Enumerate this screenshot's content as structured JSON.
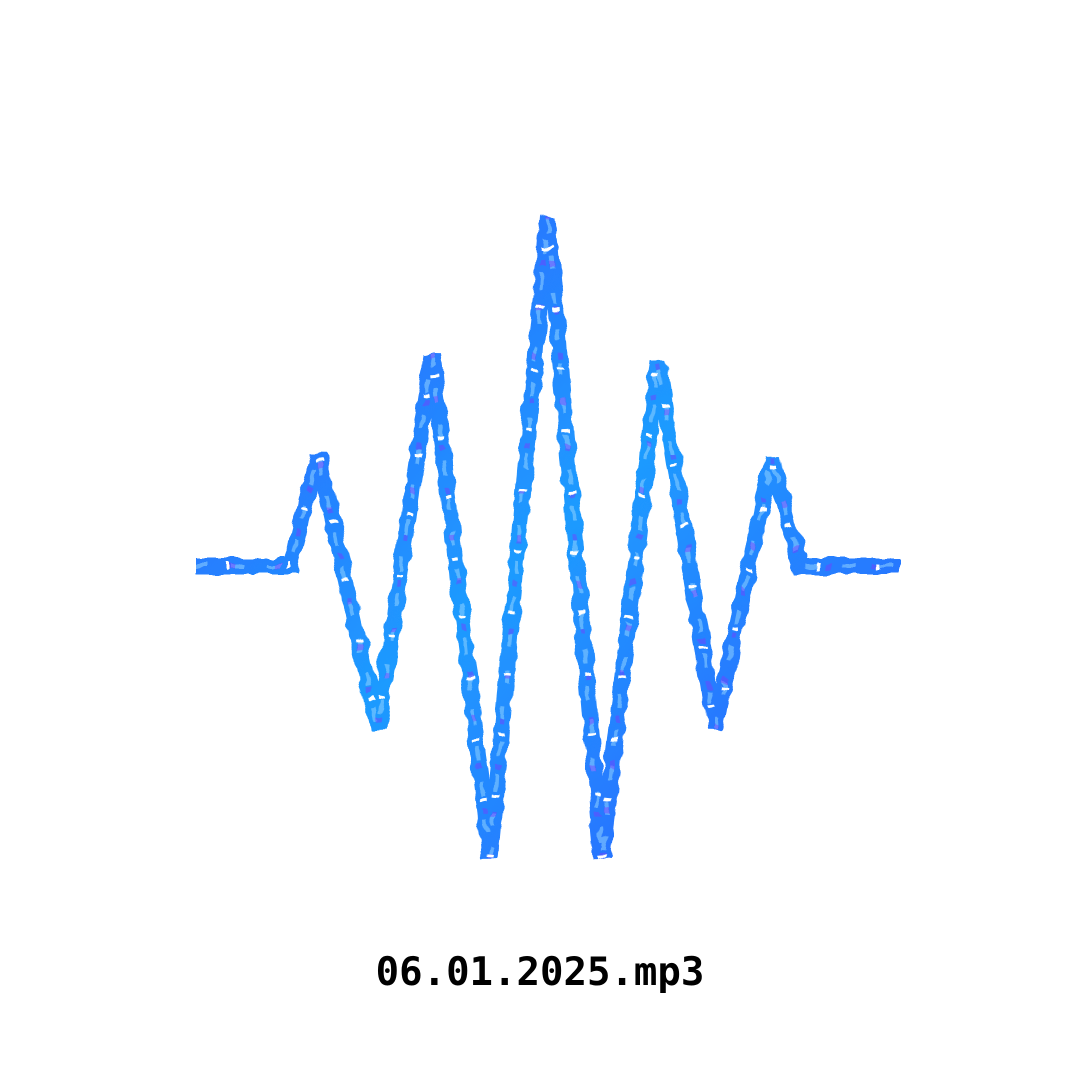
{
  "file": {
    "name": "06.01.2025.mp3"
  },
  "waveform": {
    "icon": "audio-waveform-icon",
    "colors": {
      "primary": "#2f5bff",
      "secondary": "#1e9bff",
      "highlight": "#8fd2ff",
      "accent": "#7b3cff",
      "background": "#ffffff"
    }
  }
}
